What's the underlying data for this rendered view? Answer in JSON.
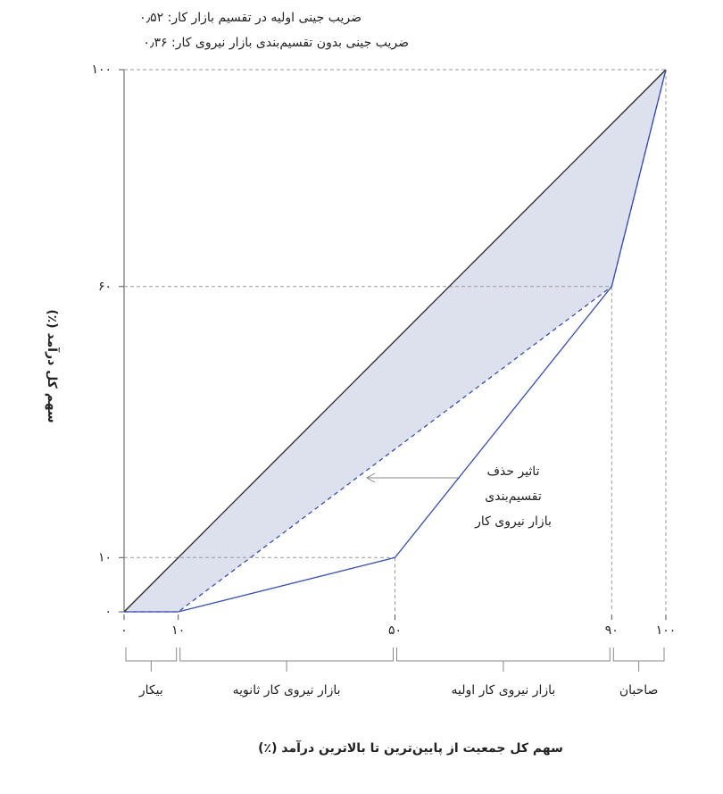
{
  "chart_data": {
    "type": "line",
    "subtitles": [
      "ضریب جینی اولیه در تقسیم بازار کار: ۰٫۵۲",
      "ضریب جینی بدون تقسیم‌بندی بازار نیروی کار: ۰٫۳۶"
    ],
    "x_label": "سهم کل جمعیت از پایین‌ترین تا بالاترین درآمد (٪)",
    "y_label": "سهم کل درآمد (٪)",
    "annotation": [
      "تاثیر حذف",
      "تقسیم‌بندی",
      "بازار نیروی کار"
    ],
    "xlim": [
      0,
      100
    ],
    "ylim": [
      0,
      100
    ],
    "xticks": [
      {
        "value": 0,
        "label": "۰"
      },
      {
        "value": 10,
        "label": "۱۰"
      },
      {
        "value": 50,
        "label": "۵۰"
      },
      {
        "value": 90,
        "label": "۹۰"
      },
      {
        "value": 100,
        "label": "۱۰۰"
      }
    ],
    "yticks": [
      {
        "value": 0,
        "label": "۰"
      },
      {
        "value": 10,
        "label": "۱۰"
      },
      {
        "value": 60,
        "label": "۶۰"
      },
      {
        "value": 100,
        "label": "۱۰۰"
      }
    ],
    "area_color": "#dde1ee",
    "series": [
      {
        "color": "#222222",
        "x": [
          0,
          100
        ],
        "values": [
          0,
          100
        ]
      },
      {
        "color": "#3a4fb0",
        "dashed": true,
        "x": [
          0,
          10,
          90,
          100
        ],
        "values": [
          0,
          0,
          60,
          100
        ]
      },
      {
        "color": "#3a4fb0",
        "x": [
          0,
          10,
          50,
          90,
          100
        ],
        "values": [
          0,
          0,
          10,
          60,
          100
        ]
      }
    ],
    "groups": [
      {
        "label": "بیکار",
        "range": [
          0,
          10
        ]
      },
      {
        "label": "بازار نیروی کار ثانویه",
        "range": [
          10,
          50
        ]
      },
      {
        "label": "بازار نیروی کار اولیه",
        "range": [
          50,
          90
        ]
      },
      {
        "label": "صاحبان",
        "range": [
          90,
          100
        ]
      }
    ]
  }
}
